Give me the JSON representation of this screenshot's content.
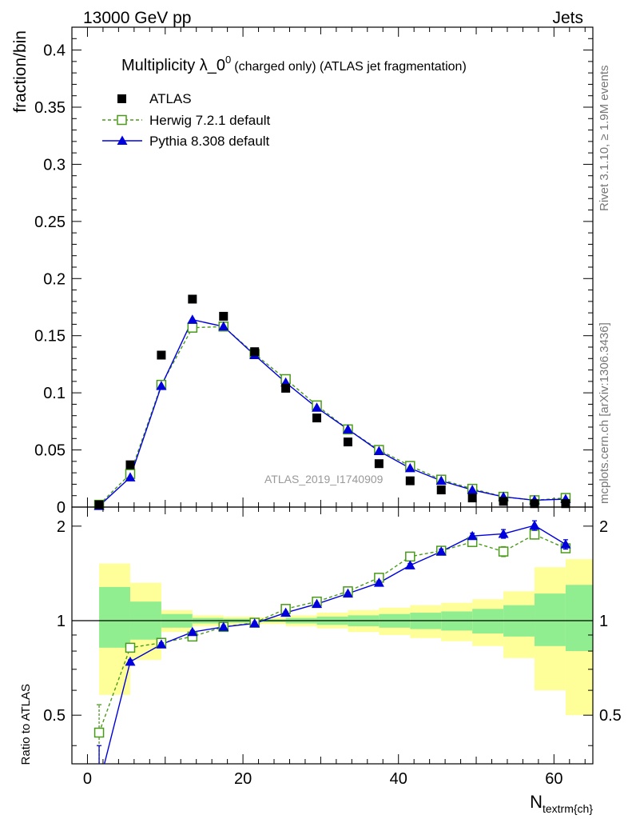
{
  "header": {
    "left": "13000 GeV pp",
    "right": "Jets"
  },
  "side_labels": {
    "top": "Rivet 3.1.10, ≥ 1.9M events",
    "bottom": "mcplots.cern.ch [arXiv:1306.3436]"
  },
  "chart_data": [
    {
      "type": "scatter",
      "title_main": "Multiplicity λ_0",
      "title_sup": "0",
      "title_sub": "(charged only) (ATLAS jet fragmentation)",
      "ylabel": "fraction/bin",
      "analysis_label": "ATLAS_2019_I1740909",
      "xlim": [
        -2,
        65
      ],
      "ylim": [
        0,
        0.42
      ],
      "yticks": [
        "0",
        "0.05",
        "0.1",
        "0.15",
        "0.2",
        "0.25",
        "0.3",
        "0.35",
        "0.4"
      ],
      "legend_position": "top-left",
      "x": [
        1.5,
        5.5,
        9.5,
        13.5,
        17.5,
        21.5,
        25.5,
        29.5,
        33.5,
        37.5,
        41.5,
        45.5,
        49.5,
        53.5,
        57.5,
        61.5
      ],
      "series": [
        {
          "name": "ATLAS",
          "marker": "filled-square",
          "color": "#000000",
          "values": [
            0.002,
            0.037,
            0.133,
            0.182,
            0.167,
            0.136,
            0.104,
            0.078,
            0.057,
            0.038,
            0.023,
            0.015,
            0.008,
            0.005,
            0.003,
            0.003
          ]
        },
        {
          "name": "Herwig 7.2.1 default",
          "marker": "open-square",
          "line": "dashed",
          "color": "#4a9a1a",
          "values": [
            0.002,
            0.029,
            0.107,
            0.157,
            0.158,
            0.134,
            0.112,
            0.089,
            0.068,
            0.05,
            0.036,
            0.024,
            0.016,
            0.009,
            0.006,
            0.008
          ]
        },
        {
          "name": "Pythia 8.308 default",
          "marker": "filled-triangle",
          "line": "solid",
          "color": "#0000dd",
          "values": [
            0.001,
            0.026,
            0.106,
            0.164,
            0.158,
            0.133,
            0.109,
            0.087,
            0.068,
            0.049,
            0.034,
            0.023,
            0.015,
            0.009,
            0.006,
            0.007
          ]
        }
      ]
    },
    {
      "type": "scatter",
      "ylabel": "Ratio to ATLAS",
      "xlabel_main": "N",
      "xlabel_sub": "textrm{ch}",
      "xlim": [
        -2,
        65
      ],
      "ylim": [
        0.35,
        2.3
      ],
      "xticks": [
        "0",
        "20",
        "40",
        "60"
      ],
      "yticks": [
        "0.5",
        "1",
        "2"
      ],
      "bands": {
        "bin_edges": [
          1.5,
          5.5,
          9.5,
          13.5,
          17.5,
          21.5,
          25.5,
          29.5,
          33.5,
          37.5,
          41.5,
          45.5,
          49.5,
          53.5,
          57.5,
          61.5,
          65.5
        ],
        "outer_low": [
          0.58,
          0.75,
          0.92,
          0.96,
          0.97,
          0.975,
          0.96,
          0.945,
          0.92,
          0.9,
          0.88,
          0.86,
          0.83,
          0.76,
          0.6,
          0.5
        ],
        "outer_high": [
          1.52,
          1.32,
          1.08,
          1.04,
          1.03,
          1.025,
          1.04,
          1.06,
          1.08,
          1.1,
          1.12,
          1.14,
          1.17,
          1.24,
          1.48,
          1.57
        ],
        "inner_low": [
          0.82,
          0.87,
          0.95,
          0.98,
          0.985,
          0.99,
          0.98,
          0.97,
          0.96,
          0.95,
          0.94,
          0.93,
          0.91,
          0.89,
          0.83,
          0.8
        ],
        "inner_high": [
          1.28,
          1.15,
          1.05,
          1.02,
          1.015,
          1.01,
          1.02,
          1.03,
          1.04,
          1.05,
          1.06,
          1.07,
          1.09,
          1.12,
          1.22,
          1.3
        ],
        "outer_color": "#ffff99",
        "inner_color": "#90ee90"
      },
      "x": [
        1.5,
        5.5,
        9.5,
        13.5,
        17.5,
        21.5,
        25.5,
        29.5,
        33.5,
        37.5,
        41.5,
        45.5,
        49.5,
        53.5,
        57.5,
        61.5
      ],
      "series": [
        {
          "name": "Herwig 7.2.1 default",
          "marker": "open-square",
          "line": "dashed",
          "color": "#4a9a1a",
          "values": [
            0.44,
            0.82,
            0.85,
            0.89,
            0.955,
            0.985,
            1.09,
            1.15,
            1.24,
            1.37,
            1.6,
            1.67,
            1.78,
            1.66,
            1.88,
            1.7
          ],
          "errors": [
            0.1,
            0.01,
            0.01,
            0.01,
            0.01,
            0.01,
            0.01,
            0.01,
            0.01,
            0.02,
            0.02,
            0.03,
            0.04,
            0.06,
            0.06,
            0.05
          ]
        },
        {
          "name": "Pythia 8.308 default",
          "marker": "filled-triangle",
          "line": "solid",
          "color": "#0000dd",
          "values": [
            0.3,
            0.74,
            0.84,
            0.92,
            0.955,
            0.98,
            1.06,
            1.13,
            1.22,
            1.32,
            1.5,
            1.66,
            1.86,
            1.89,
            2.01,
            1.75
          ],
          "errors": [
            0.1,
            0.01,
            0.01,
            0.01,
            0.01,
            0.01,
            0.01,
            0.01,
            0.01,
            0.02,
            0.02,
            0.03,
            0.04,
            0.06,
            0.07,
            0.06
          ]
        }
      ]
    }
  ]
}
